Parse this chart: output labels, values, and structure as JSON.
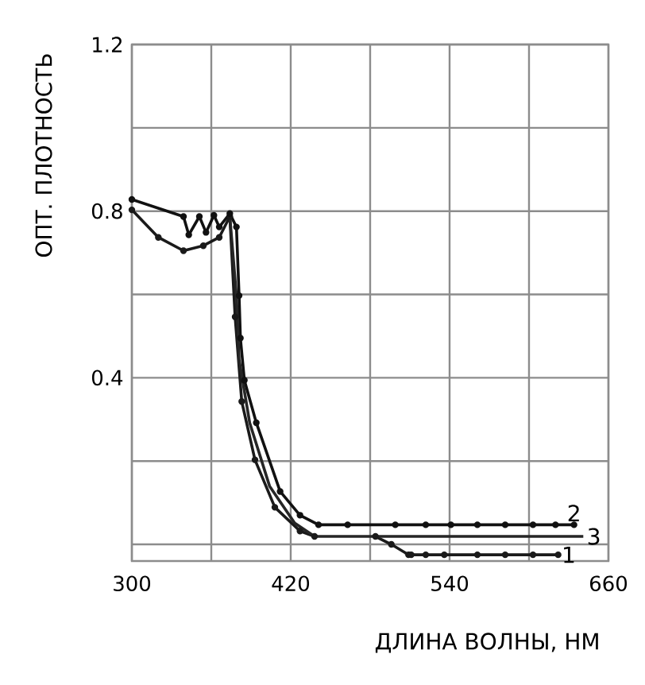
{
  "chart_data": {
    "type": "line",
    "xlabel": "ДЛИНА ВОЛНЫ, НМ",
    "ylabel": "ОПТ. ПЛОТНОСТЬ",
    "xlim": [
      300,
      660
    ],
    "ylim": [
      -0.04,
      1.2
    ],
    "xticks": [
      300,
      {
        "value": 360,
        "label": null
      },
      420,
      {
        "value": 480,
        "label": null
      },
      540,
      {
        "value": 600,
        "label": null
      },
      660
    ],
    "yticks": [
      {
        "value": 0,
        "label": null
      },
      {
        "value": 0.2,
        "label": null
      },
      0.4,
      {
        "value": 0.6,
        "label": null
      },
      0.8,
      {
        "value": 1.0,
        "label": null
      },
      1.2
    ],
    "grid": true,
    "series": [
      {
        "name": "1",
        "color": "#1a1a1a",
        "marker": "circle",
        "x": [
          300,
          320,
          339,
          354,
          366,
          374,
          378,
          383,
          393,
          408,
          427,
          438,
          460,
          484,
          496,
          509,
          511,
          522,
          536,
          561,
          582,
          603,
          622
        ],
        "values": [
          0.803,
          0.737,
          0.705,
          0.717,
          0.737,
          0.787,
          0.546,
          0.343,
          0.203,
          0.089,
          0.032,
          0.019,
          null,
          0.019,
          0,
          -0.025,
          -0.025,
          -0.025,
          -0.025,
          -0.025,
          -0.025,
          -0.025,
          -0.025
        ]
      },
      {
        "name": "2",
        "color": "#111111",
        "marker": "circle",
        "x": [
          300,
          339,
          343,
          351,
          356,
          362,
          366,
          374,
          379,
          381,
          382,
          385,
          394,
          412,
          427,
          441,
          463,
          499,
          522,
          541,
          561,
          582,
          603,
          620,
          634
        ],
        "values": [
          0.828,
          0.787,
          0.743,
          0.787,
          0.749,
          0.79,
          0.762,
          0.794,
          0.762,
          0.597,
          0.495,
          0.394,
          0.292,
          0.127,
          0.07,
          0.047,
          0.047,
          0.047,
          0.047,
          0.047,
          0.047,
          0.047,
          0.047,
          0.047,
          0.047
        ]
      },
      {
        "name": "3",
        "color": "#262626",
        "marker": "none",
        "x": [
          374,
          379,
          381,
          389,
          404,
          423,
          438,
          641
        ],
        "values": [
          0.787,
          0.597,
          0.444,
          0.292,
          0.14,
          0.051,
          0.019,
          0.019
        ]
      }
    ]
  }
}
